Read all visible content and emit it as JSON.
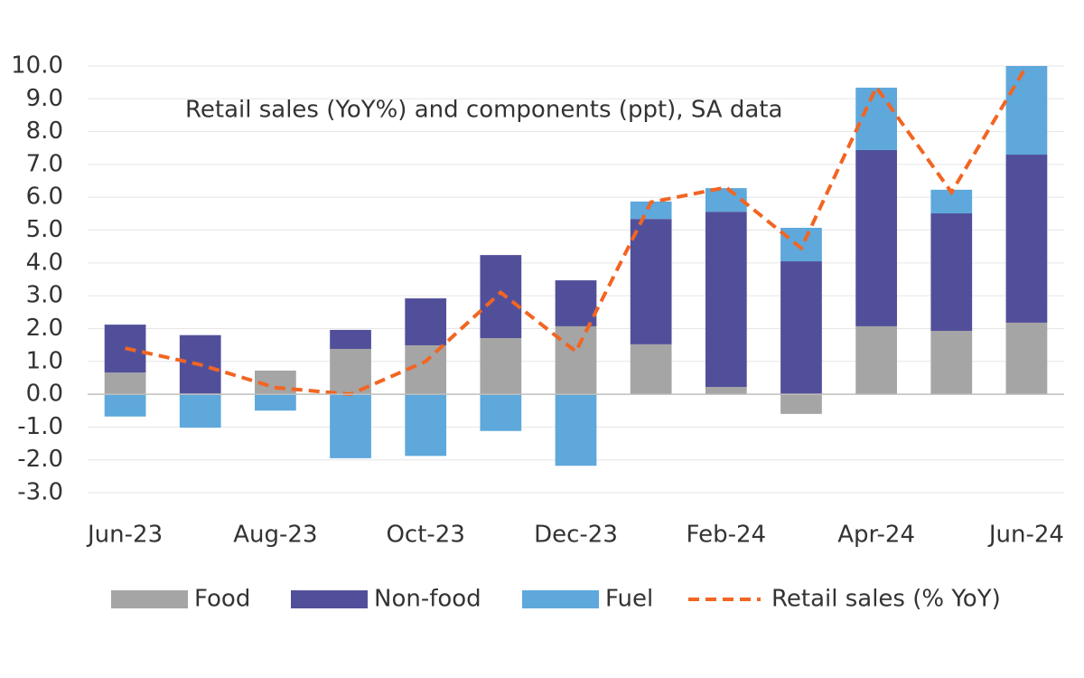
{
  "chart_data": {
    "type": "bar",
    "stacked": true,
    "title": "Retail sales (YoY%) and components (ppt), SA data",
    "categories": [
      "Jun-23",
      null,
      "Aug-23",
      null,
      "Oct-23",
      null,
      "Dec-23",
      null,
      "Feb-24",
      null,
      "Apr-24",
      null,
      "Jun-24"
    ],
    "series": [
      {
        "name": "Food",
        "color": "#a5a5a5",
        "values": [
          0.66,
          0.02,
          0.72,
          1.38,
          1.49,
          1.71,
          2.07,
          1.52,
          0.22,
          -0.6,
          2.07,
          1.93,
          2.18
        ]
      },
      {
        "name": "Non-food",
        "color": "#524f9a",
        "values": [
          1.46,
          1.78,
          0,
          0.58,
          1.43,
          2.53,
          1.4,
          3.82,
          5.34,
          4.05,
          5.37,
          3.58,
          5.12
        ]
      },
      {
        "name": "Fuel",
        "color": "#5ea8dc",
        "values": [
          -0.68,
          -1.02,
          -0.5,
          -1.95,
          -1.88,
          -1.12,
          -2.18,
          0.53,
          0.72,
          1.02,
          1.9,
          0.72,
          2.7
        ]
      },
      {
        "name": "Retail sales  (% YoY)",
        "type": "line",
        "dashed": true,
        "color": "#f26522",
        "values": [
          1.4,
          0.9,
          0.2,
          0.0,
          1.0,
          3.1,
          1.3,
          5.85,
          6.3,
          4.45,
          9.35,
          6.15,
          10.0
        ]
      }
    ],
    "ylim": [
      -3,
      10
    ],
    "yticks": [
      {
        "value": -3,
        "label": "-3.0"
      },
      {
        "value": -2,
        "label": "-2.0"
      },
      {
        "value": -1,
        "label": "-1.0"
      },
      {
        "value": 0,
        "label": "0.0"
      },
      {
        "value": 1,
        "label": "1.0"
      },
      {
        "value": 2,
        "label": "2.0"
      },
      {
        "value": 3,
        "label": "3.0"
      },
      {
        "value": 4,
        "label": "4.0"
      },
      {
        "value": 5,
        "label": "5.0"
      },
      {
        "value": 6,
        "label": "6.0"
      },
      {
        "value": 7,
        "label": "7.0"
      },
      {
        "value": 8,
        "label": "8.0"
      },
      {
        "value": 9,
        "label": "9.0"
      },
      {
        "value": 10,
        "label": "10.0"
      }
    ],
    "grid": true,
    "legend": "bottom"
  }
}
